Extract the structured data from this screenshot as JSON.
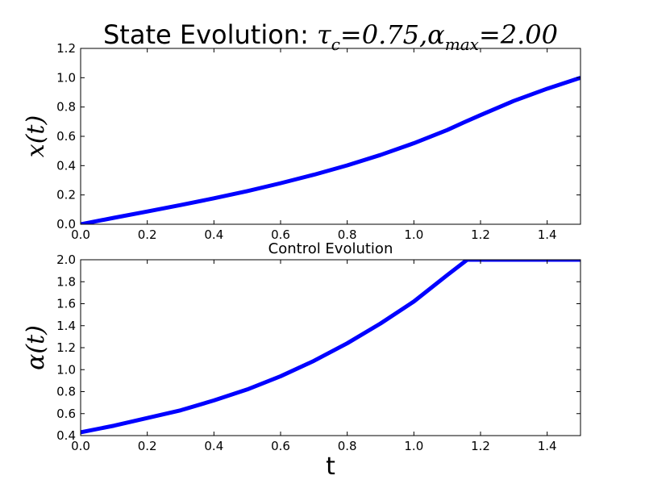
{
  "chart_data": [
    {
      "type": "line",
      "title_prefix": "State Evolution: ",
      "title_math": "τc=0.75,αmax=2.00",
      "title_math_parts": {
        "tau": "τ",
        "tau_sub": "c",
        "eq1": "=0.75,",
        "alpha": "α",
        "alpha_sub": "max",
        "eq2": "=2.00"
      },
      "ylabel": "x(t)",
      "xlabel": "",
      "xlim": [
        0.0,
        1.5
      ],
      "ylim": [
        0.0,
        1.2
      ],
      "xticks": [
        "0.0",
        "0.2",
        "0.4",
        "0.6",
        "0.8",
        "1.0",
        "1.2",
        "1.4"
      ],
      "yticks": [
        "0.0",
        "0.2",
        "0.4",
        "0.6",
        "0.8",
        "1.0",
        "1.2"
      ],
      "series": [
        {
          "color": "#0000ff",
          "x": [
            0.0,
            0.1,
            0.2,
            0.3,
            0.4,
            0.5,
            0.6,
            0.7,
            0.8,
            0.9,
            1.0,
            1.1,
            1.15,
            1.2,
            1.3,
            1.4,
            1.5
          ],
          "y": [
            0.0,
            0.044,
            0.087,
            0.131,
            0.177,
            0.226,
            0.28,
            0.338,
            0.402,
            0.473,
            0.553,
            0.643,
            0.695,
            0.745,
            0.842,
            0.925,
            1.0
          ]
        }
      ]
    },
    {
      "type": "line",
      "title": "Control Evolution",
      "ylabel": "α(t)",
      "xlabel": "t",
      "xlim": [
        0.0,
        1.5
      ],
      "ylim": [
        0.4,
        2.0
      ],
      "xticks": [
        "0.0",
        "0.2",
        "0.4",
        "0.6",
        "0.8",
        "1.0",
        "1.2",
        "1.4"
      ],
      "yticks": [
        "0.4",
        "0.6",
        "0.8",
        "1.0",
        "1.2",
        "1.4",
        "1.6",
        "1.8",
        "2.0"
      ],
      "series": [
        {
          "color": "#0000ff",
          "x": [
            0.0,
            0.1,
            0.2,
            0.3,
            0.4,
            0.5,
            0.6,
            0.7,
            0.8,
            0.9,
            1.0,
            1.1,
            1.16,
            1.2,
            1.3,
            1.4,
            1.5
          ],
          "y": [
            0.43,
            0.49,
            0.56,
            0.63,
            0.72,
            0.82,
            0.94,
            1.08,
            1.24,
            1.42,
            1.62,
            1.86,
            2.0,
            2.0,
            2.0,
            2.0,
            2.0
          ]
        }
      ]
    }
  ]
}
